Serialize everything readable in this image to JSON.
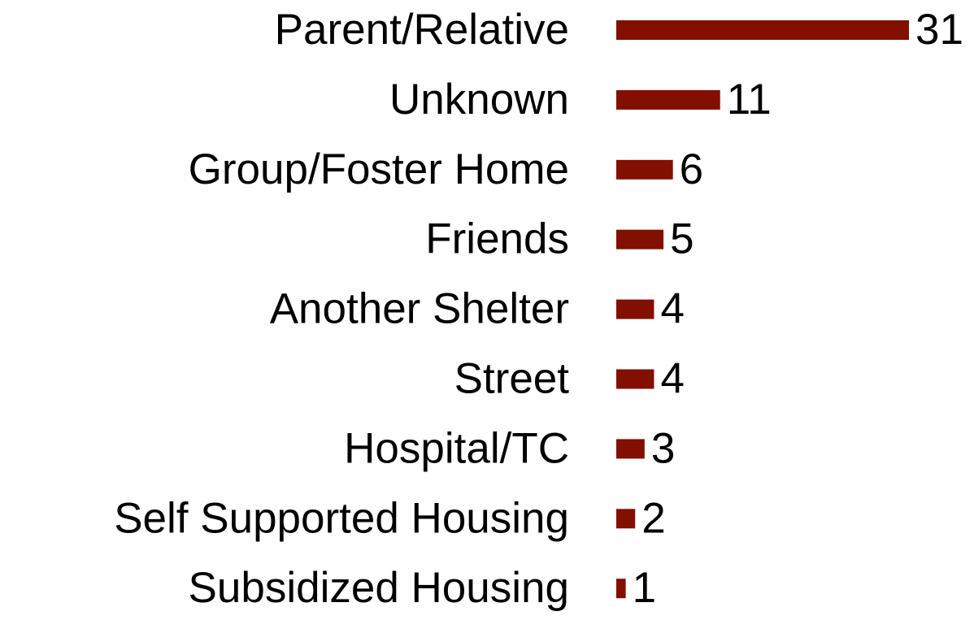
{
  "chart_data": {
    "type": "bar",
    "orientation": "horizontal",
    "categories": [
      "Parent/Relative",
      "Unknown",
      "Group/Foster Home",
      "Friends",
      "Another Shelter",
      "Street",
      "Hospital/TC",
      "Self Supported Housing",
      "Subsidized Housing"
    ],
    "values": [
      31,
      11,
      6,
      5,
      4,
      4,
      3,
      2,
      1
    ],
    "color": "#820f00"
  }
}
